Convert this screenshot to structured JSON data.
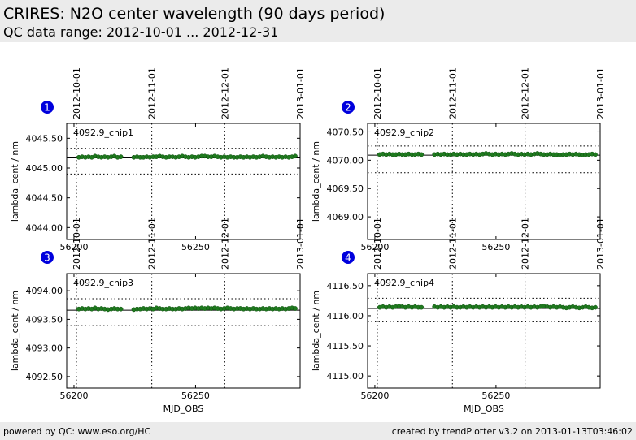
{
  "header": {
    "title": "CRIRES: N2O center wavelength (90 days period)",
    "subtitle": "QC data range: 2012-10-01 ... 2012-12-31"
  },
  "footer": {
    "left": "powered by QC: www.eso.org/HC",
    "right": "created by trendPlotter v3.2 on 2013-01-13T03:46:02"
  },
  "colors": {
    "points": "#1f7a1f",
    "badge": "#0000dd"
  },
  "top_date_ticks": [
    "2012-10-01",
    "2012-11-01",
    "2012-12-01",
    "2013-01-01"
  ],
  "chart_data": [
    {
      "type": "scatter",
      "badge": "1",
      "label": "4092.9_chip1",
      "ylabel": "lambda_cent / nm",
      "xlabel": "",
      "xlim": [
        56197,
        56293
      ],
      "ylim": [
        4043.8,
        4045.75
      ],
      "xticks": [
        56200,
        56250
      ],
      "yticks": [
        4044.0,
        4044.5,
        4045.0,
        4045.5
      ],
      "ytick_labels": [
        "4044.00",
        "4044.50",
        "4045.00",
        "4045.50"
      ],
      "date_lines": [
        56201,
        56232,
        56262,
        56293
      ],
      "mean": 4045.17,
      "bounds": [
        4044.9,
        4045.33
      ],
      "values": [
        4045.18,
        4045.19,
        4045.18,
        4045.19,
        4045.18,
        4045.2,
        4045.19,
        4045.18,
        4045.19,
        4045.18,
        4045.19,
        4045.2,
        4045.18,
        4045.19,
        4045.18,
        4045.19,
        4045.18,
        4045.18,
        4045.19,
        4045.18,
        4045.19,
        4045.19,
        4045.2,
        4045.19,
        4045.18,
        4045.19,
        4045.19,
        4045.18,
        4045.19,
        4045.2,
        4045.19,
        4045.18,
        4045.19,
        4045.18,
        4045.19,
        4045.2,
        4045.2,
        4045.19,
        4045.19,
        4045.2,
        4045.19,
        4045.18,
        4045.19,
        4045.18,
        4045.19,
        4045.18,
        4045.18,
        4045.19,
        4045.18,
        4045.19,
        4045.18,
        4045.19,
        4045.18,
        4045.19,
        4045.2,
        4045.19,
        4045.18,
        4045.19,
        4045.18,
        4045.19,
        4045.18,
        4045.19,
        4045.18,
        4045.19,
        4045.2
      ]
    },
    {
      "type": "scatter",
      "badge": "2",
      "label": "4092.9_chip2",
      "ylabel": "lambda_cent / nm",
      "xlabel": "",
      "xlim": [
        56197,
        56293
      ],
      "ylim": [
        4068.6,
        4070.65
      ],
      "xticks": [
        56200,
        56250
      ],
      "yticks": [
        4069.0,
        4069.5,
        4070.0,
        4070.5
      ],
      "ytick_labels": [
        "4069.00",
        "4069.50",
        "4070.00",
        "4070.50"
      ],
      "date_lines": [
        56201,
        56232,
        56262,
        56293
      ],
      "mean": 4070.09,
      "bounds": [
        4069.78,
        4070.25
      ],
      "values": [
        4070.1,
        4070.11,
        4070.1,
        4070.11,
        4070.1,
        4070.1,
        4070.11,
        4070.1,
        4070.1,
        4070.11,
        4070.1,
        4070.1,
        4070.11,
        4070.1,
        4070.1,
        4070.11,
        4070.1,
        4070.11,
        4070.1,
        4070.1,
        4070.11,
        4070.1,
        4070.11,
        4070.1,
        4070.1,
        4070.11,
        4070.1,
        4070.11,
        4070.1,
        4070.11,
        4070.12,
        4070.11,
        4070.1,
        4070.11,
        4070.1,
        4070.11,
        4070.1,
        4070.11,
        4070.12,
        4070.11,
        4070.1,
        4070.11,
        4070.1,
        4070.11,
        4070.1,
        4070.11,
        4070.12,
        4070.11,
        4070.1,
        4070.1,
        4070.11,
        4070.1,
        4070.1,
        4070.09,
        4070.1,
        4070.1,
        4070.11,
        4070.1,
        4070.11,
        4070.1,
        4070.09,
        4070.1,
        4070.1,
        4070.11,
        4070.1
      ]
    },
    {
      "type": "scatter",
      "badge": "3",
      "label": "4092.9_chip3",
      "ylabel": "lambda_cent / nm",
      "xlabel": "MJD_OBS",
      "xlim": [
        56197,
        56293
      ],
      "ylim": [
        4092.3,
        4094.3
      ],
      "xticks": [
        56200,
        56250
      ],
      "yticks": [
        4092.5,
        4093.0,
        4093.5,
        4094.0
      ],
      "ytick_labels": [
        "4092.50",
        "4093.00",
        "4093.50",
        "4094.00"
      ],
      "date_lines": [
        56201,
        56232,
        56262,
        56293
      ],
      "mean": 4093.66,
      "bounds": [
        4093.39,
        4093.86
      ],
      "values": [
        4093.68,
        4093.69,
        4093.68,
        4093.69,
        4093.68,
        4093.7,
        4093.68,
        4093.69,
        4093.68,
        4093.67,
        4093.68,
        4093.69,
        4093.68,
        4093.68,
        4093.67,
        4093.68,
        4093.68,
        4093.69,
        4093.68,
        4093.69,
        4093.68,
        4093.7,
        4093.69,
        4093.68,
        4093.68,
        4093.69,
        4093.68,
        4093.68,
        4093.69,
        4093.68,
        4093.69,
        4093.7,
        4093.69,
        4093.7,
        4093.69,
        4093.7,
        4093.69,
        4093.7,
        4093.69,
        4093.7,
        4093.69,
        4093.68,
        4093.69,
        4093.7,
        4093.69,
        4093.68,
        4093.69,
        4093.69,
        4093.68,
        4093.69,
        4093.68,
        4093.69,
        4093.68,
        4093.68,
        4093.69,
        4093.68,
        4093.69,
        4093.68,
        4093.69,
        4093.68,
        4093.69,
        4093.68,
        4093.69,
        4093.7,
        4093.69
      ]
    },
    {
      "type": "scatter",
      "badge": "4",
      "label": "4092.9_chip4",
      "ylabel": "lambda_cent / nm",
      "xlabel": "MJD_OBS",
      "xlim": [
        56197,
        56293
      ],
      "ylim": [
        4114.8,
        4116.7
      ],
      "xticks": [
        56200,
        56250
      ],
      "yticks": [
        4115.0,
        4115.5,
        4116.0,
        4116.5
      ],
      "ytick_labels": [
        "4115.00",
        "4115.50",
        "4116.00",
        "4116.50"
      ],
      "date_lines": [
        56201,
        56232,
        56262,
        56293
      ],
      "mean": 4116.12,
      "bounds": [
        4115.9,
        4116.29
      ],
      "values": [
        4116.14,
        4116.15,
        4116.14,
        4116.15,
        4116.14,
        4116.15,
        4116.16,
        4116.15,
        4116.14,
        4116.15,
        4116.14,
        4116.15,
        4116.14,
        4116.14,
        4116.15,
        4116.14,
        4116.15,
        4116.14,
        4116.15,
        4116.14,
        4116.15,
        4116.14,
        4116.14,
        4116.15,
        4116.14,
        4116.15,
        4116.14,
        4116.15,
        4116.14,
        4116.15,
        4116.14,
        4116.15,
        4116.14,
        4116.15,
        4116.14,
        4116.15,
        4116.14,
        4116.15,
        4116.14,
        4116.15,
        4116.14,
        4116.15,
        4116.14,
        4116.15,
        4116.14,
        4116.15,
        4116.14,
        4116.15,
        4116.16,
        4116.15,
        4116.14,
        4116.15,
        4116.14,
        4116.15,
        4116.14,
        4116.13,
        4116.14,
        4116.15,
        4116.14,
        4116.13,
        4116.14,
        4116.15,
        4116.14,
        4116.13,
        4116.14
      ]
    }
  ]
}
